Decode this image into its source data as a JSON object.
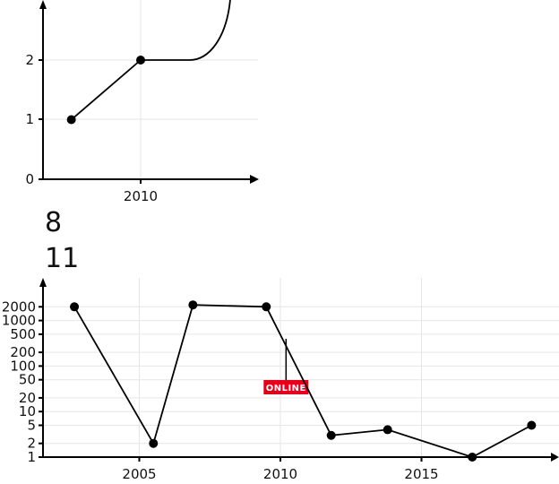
{
  "chart_data": [
    {
      "type": "line",
      "title": "",
      "xlabel": "",
      "ylabel": "",
      "x_ticks": [
        "2010"
      ],
      "y_ticks": [
        "0",
        "1",
        "2"
      ],
      "ylim": [
        0,
        3
      ],
      "points": [
        {
          "x": 2008.3,
          "y": 1
        },
        {
          "x": 2010.0,
          "y": 2
        }
      ],
      "curve": [
        {
          "x": 2010.0,
          "y": 2
        },
        {
          "x": 2011.2,
          "y": 2
        },
        {
          "x": 2012.2,
          "y": 3
        }
      ]
    },
    {
      "type": "line",
      "title": "",
      "xlabel": "",
      "ylabel": "",
      "y_scale": "log",
      "x_ticks": [
        "2005",
        "2010",
        "2015"
      ],
      "y_ticks": [
        "1",
        "2",
        "5",
        "10",
        "20",
        "50",
        "100",
        "200",
        "500",
        "1000",
        "2000"
      ],
      "xlim": [
        2001,
        2020
      ],
      "points": [
        {
          "x": 2002.7,
          "y": 2000
        },
        {
          "x": 2005.5,
          "y": 2
        },
        {
          "x": 2006.9,
          "y": 2200
        },
        {
          "x": 2009.5,
          "y": 2000
        },
        {
          "x": 2011.8,
          "y": 3
        },
        {
          "x": 2013.8,
          "y": 4
        },
        {
          "x": 2016.8,
          "y": 1
        },
        {
          "x": 2018.9,
          "y": 5
        }
      ],
      "annotation": {
        "text": "ONLINE",
        "x": 2010.2,
        "color": "#e3001b"
      }
    }
  ],
  "counters": [
    "8",
    "11"
  ]
}
